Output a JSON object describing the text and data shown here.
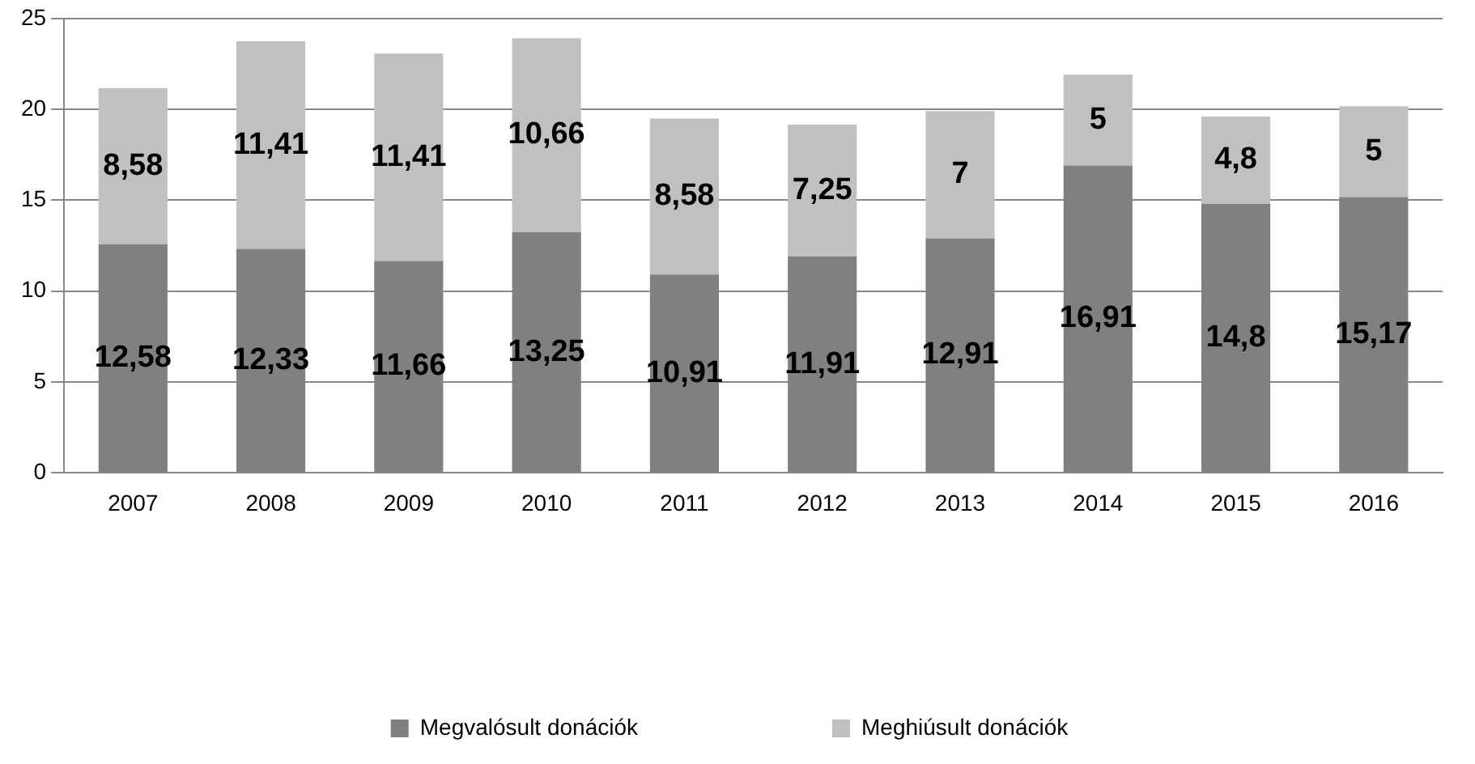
{
  "chart_data": {
    "type": "bar",
    "stacked": true,
    "categories": [
      "2007",
      "2008",
      "2009",
      "2010",
      "2011",
      "2012",
      "2013",
      "2014",
      "2015",
      "2016"
    ],
    "series": [
      {
        "name": "Megvalósult donációk",
        "color": "#808080",
        "values": [
          12.58,
          12.33,
          11.66,
          13.25,
          10.91,
          11.91,
          12.91,
          16.91,
          14.8,
          15.17
        ],
        "value_labels": [
          "12,58",
          "12,33",
          "11,66",
          "13,25",
          "10,91",
          "11,91",
          "12,91",
          "16,91",
          "14,8",
          "15,17"
        ]
      },
      {
        "name": "Meghiúsult donációk",
        "color": "#c0c0c0",
        "values": [
          8.58,
          11.41,
          11.41,
          10.66,
          8.58,
          7.25,
          7,
          5,
          4.8,
          5
        ],
        "value_labels": [
          "8,58",
          "11,41",
          "11,41",
          "10,66",
          "8,58",
          "7,25",
          "7",
          "5",
          "4,8",
          "5"
        ]
      }
    ],
    "ylim": [
      0,
      25
    ],
    "yticks": [
      0,
      5,
      10,
      15,
      20,
      25
    ],
    "grid": "y",
    "legend": "bottom"
  }
}
